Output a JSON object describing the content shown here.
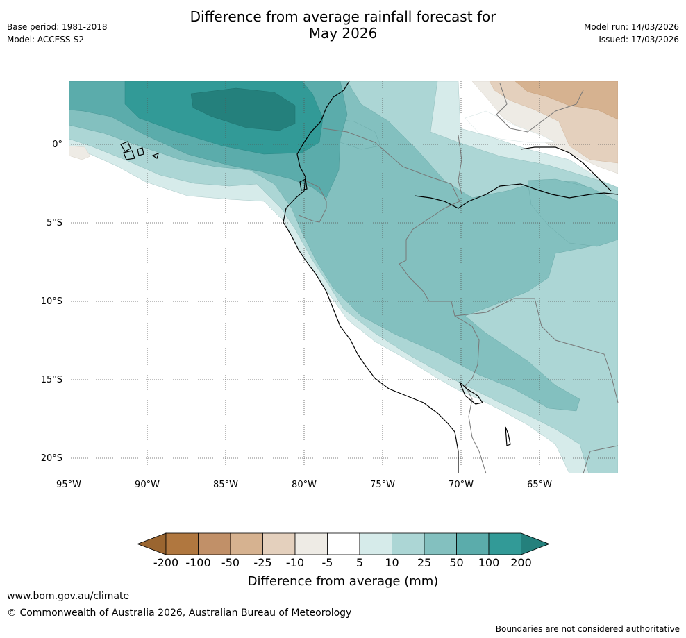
{
  "header": {
    "title_line1": "Difference from average rainfall forecast for",
    "title_line2": "May 2026",
    "base_period": "Base period: 1981-2018",
    "model": "Model: ACCESS-S2",
    "model_run": "Model run: 14/03/2026",
    "issued": "Issued: 17/03/2026"
  },
  "map": {
    "lon_ticks": [
      "95°W",
      "90°W",
      "85°W",
      "80°W",
      "75°W",
      "70°W",
      "65°W"
    ],
    "lat_ticks": [
      "0°",
      "5°S",
      "10°S",
      "15°S",
      "20°S"
    ],
    "region": "Western South America (Ecuador, Peru, Colombia, Brazil, Bolivia, Chile)"
  },
  "colorbar": {
    "title": "Difference from average (mm)",
    "labels": [
      "-200",
      "-100",
      "-50",
      "-25",
      "-10",
      "-5",
      "5",
      "10",
      "25",
      "50",
      "100",
      "200"
    ],
    "colors": [
      "#9a6530",
      "#b0773f",
      "#c19068",
      "#d6b290",
      "#e4d0bd",
      "#eeebe5",
      "#ffffff",
      "#d6ebea",
      "#acd6d5",
      "#83c0bf",
      "#5bacab",
      "#329a97",
      "#24807c"
    ]
  },
  "footer": {
    "url": "www.bom.gov.au/climate",
    "copyright": "© Commonwealth of Australia 2026, Australian Bureau of Meteorology",
    "note": "Boundaries are not considered authoritative"
  }
}
